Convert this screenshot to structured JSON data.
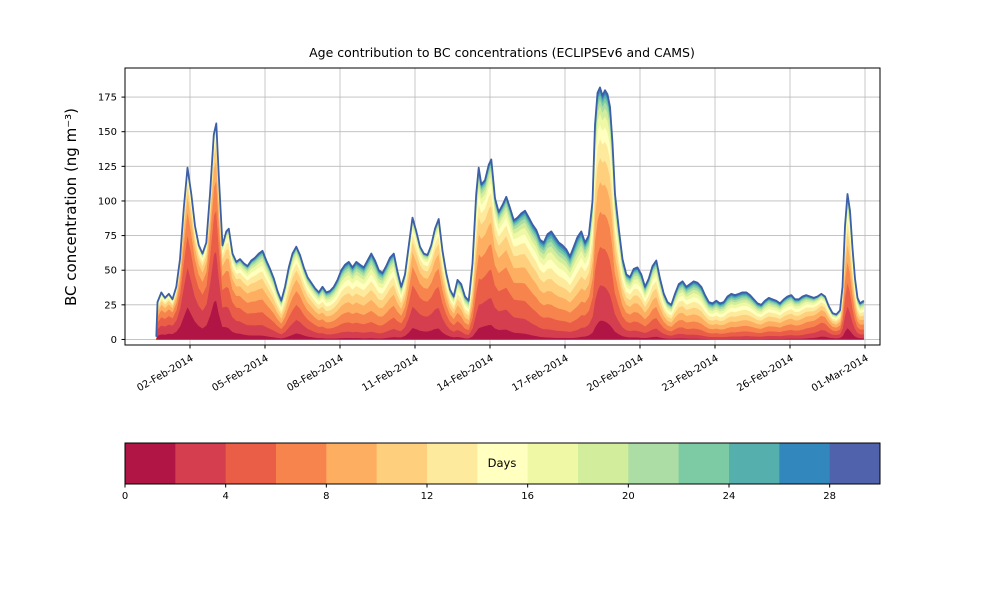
{
  "chart_data": {
    "type": "area",
    "title": "Age contribution to BC concentrations (ECLIPSEv6 and CAMS)",
    "ylabel": "BC concentration (ng m⁻³)",
    "xlabel": "",
    "grid": true,
    "ylim": [
      -4,
      196
    ],
    "yticks": [
      0,
      25,
      50,
      75,
      100,
      125,
      150,
      175
    ],
    "xlim_days": [
      -1.6,
      28.6
    ],
    "x_days_since": "01-Feb-2014",
    "xticks": [
      {
        "value": 1,
        "label": "02-Feb-2014"
      },
      {
        "value": 4,
        "label": "05-Feb-2014"
      },
      {
        "value": 7,
        "label": "08-Feb-2014"
      },
      {
        "value": 10,
        "label": "11-Feb-2014"
      },
      {
        "value": 13,
        "label": "14-Feb-2014"
      },
      {
        "value": 16,
        "label": "17-Feb-2014"
      },
      {
        "value": 19,
        "label": "20-Feb-2014"
      },
      {
        "value": 22,
        "label": "23-Feb-2014"
      },
      {
        "value": 25,
        "label": "26-Feb-2014"
      },
      {
        "value": 28,
        "label": "01-Mar-2014"
      }
    ],
    "stack_by": "age_days",
    "age_bins": {
      "min": 0,
      "max": 30,
      "step": 2
    },
    "envelope_color": "#3c5fa6",
    "colormap": {
      "name": "Spectral",
      "stops": [
        [
          0.0,
          "#9e0142"
        ],
        [
          0.1,
          "#d53e4f"
        ],
        [
          0.2,
          "#f46d43"
        ],
        [
          0.3,
          "#fdae61"
        ],
        [
          0.4,
          "#fee08b"
        ],
        [
          0.5,
          "#ffffbf"
        ],
        [
          0.6,
          "#e6f598"
        ],
        [
          0.7,
          "#abdda4"
        ],
        [
          0.8,
          "#66c2a5"
        ],
        [
          0.9,
          "#3288bd"
        ],
        [
          1.0,
          "#5e4fa2"
        ]
      ]
    },
    "colorbar": {
      "label": "Days",
      "ticks": [
        0,
        4,
        8,
        12,
        16,
        20,
        24,
        28
      ],
      "range": [
        0,
        30
      ]
    },
    "points": [
      [
        -0.35,
        2
      ],
      [
        -0.3,
        27
      ],
      [
        -0.15,
        34
      ],
      [
        0.0,
        30
      ],
      [
        0.15,
        33
      ],
      [
        0.3,
        29
      ],
      [
        0.45,
        38
      ],
      [
        0.6,
        58
      ],
      [
        0.75,
        95
      ],
      [
        0.9,
        124
      ],
      [
        1.05,
        105
      ],
      [
        1.2,
        82
      ],
      [
        1.35,
        68
      ],
      [
        1.5,
        62
      ],
      [
        1.65,
        70
      ],
      [
        1.8,
        105
      ],
      [
        1.95,
        148
      ],
      [
        2.05,
        156
      ],
      [
        2.15,
        118
      ],
      [
        2.3,
        68
      ],
      [
        2.45,
        78
      ],
      [
        2.55,
        80
      ],
      [
        2.7,
        62
      ],
      [
        2.85,
        56
      ],
      [
        3.0,
        58
      ],
      [
        3.15,
        55
      ],
      [
        3.3,
        53
      ],
      [
        3.45,
        57
      ],
      [
        3.6,
        59
      ],
      [
        3.75,
        62
      ],
      [
        3.9,
        64
      ],
      [
        4.05,
        57
      ],
      [
        4.2,
        51
      ],
      [
        4.35,
        44
      ],
      [
        4.5,
        35
      ],
      [
        4.65,
        28
      ],
      [
        4.8,
        38
      ],
      [
        4.95,
        52
      ],
      [
        5.1,
        62
      ],
      [
        5.25,
        67
      ],
      [
        5.4,
        61
      ],
      [
        5.55,
        52
      ],
      [
        5.7,
        45
      ],
      [
        5.85,
        41
      ],
      [
        6.0,
        37
      ],
      [
        6.15,
        34
      ],
      [
        6.3,
        38
      ],
      [
        6.45,
        34
      ],
      [
        6.6,
        35
      ],
      [
        6.75,
        38
      ],
      [
        6.9,
        43
      ],
      [
        7.05,
        50
      ],
      [
        7.2,
        54
      ],
      [
        7.35,
        56
      ],
      [
        7.5,
        52
      ],
      [
        7.65,
        56
      ],
      [
        7.8,
        54
      ],
      [
        7.95,
        52
      ],
      [
        8.1,
        57
      ],
      [
        8.25,
        62
      ],
      [
        8.4,
        57
      ],
      [
        8.55,
        50
      ],
      [
        8.7,
        48
      ],
      [
        8.85,
        53
      ],
      [
        9.0,
        59
      ],
      [
        9.15,
        62
      ],
      [
        9.3,
        49
      ],
      [
        9.45,
        38
      ],
      [
        9.6,
        47
      ],
      [
        9.75,
        68
      ],
      [
        9.9,
        88
      ],
      [
        10.05,
        78
      ],
      [
        10.2,
        67
      ],
      [
        10.35,
        62
      ],
      [
        10.5,
        61
      ],
      [
        10.65,
        68
      ],
      [
        10.8,
        80
      ],
      [
        10.95,
        87
      ],
      [
        11.1,
        64
      ],
      [
        11.25,
        48
      ],
      [
        11.4,
        36
      ],
      [
        11.55,
        31
      ],
      [
        11.7,
        43
      ],
      [
        11.85,
        40
      ],
      [
        12.0,
        31
      ],
      [
        12.15,
        28
      ],
      [
        12.3,
        55
      ],
      [
        12.45,
        105
      ],
      [
        12.55,
        124
      ],
      [
        12.65,
        112
      ],
      [
        12.8,
        115
      ],
      [
        12.95,
        126
      ],
      [
        13.05,
        130
      ],
      [
        13.2,
        102
      ],
      [
        13.35,
        92
      ],
      [
        13.5,
        97
      ],
      [
        13.65,
        103
      ],
      [
        13.8,
        95
      ],
      [
        13.95,
        86
      ],
      [
        14.1,
        88
      ],
      [
        14.25,
        91
      ],
      [
        14.4,
        93
      ],
      [
        14.55,
        88
      ],
      [
        14.7,
        83
      ],
      [
        14.85,
        79
      ],
      [
        15.0,
        72
      ],
      [
        15.15,
        70
      ],
      [
        15.3,
        76
      ],
      [
        15.45,
        78
      ],
      [
        15.6,
        74
      ],
      [
        15.75,
        70
      ],
      [
        15.9,
        68
      ],
      [
        16.05,
        65
      ],
      [
        16.2,
        60
      ],
      [
        16.35,
        67
      ],
      [
        16.5,
        74
      ],
      [
        16.65,
        78
      ],
      [
        16.8,
        70
      ],
      [
        16.95,
        75
      ],
      [
        17.1,
        100
      ],
      [
        17.2,
        155
      ],
      [
        17.3,
        178
      ],
      [
        17.4,
        182
      ],
      [
        17.5,
        176
      ],
      [
        17.6,
        180
      ],
      [
        17.7,
        177
      ],
      [
        17.8,
        168
      ],
      [
        17.9,
        142
      ],
      [
        18.0,
        105
      ],
      [
        18.15,
        80
      ],
      [
        18.3,
        58
      ],
      [
        18.45,
        47
      ],
      [
        18.6,
        45
      ],
      [
        18.75,
        51
      ],
      [
        18.9,
        52
      ],
      [
        19.05,
        47
      ],
      [
        19.2,
        38
      ],
      [
        19.35,
        44
      ],
      [
        19.5,
        53
      ],
      [
        19.65,
        57
      ],
      [
        19.8,
        44
      ],
      [
        19.95,
        33
      ],
      [
        20.1,
        27
      ],
      [
        20.25,
        25
      ],
      [
        20.4,
        33
      ],
      [
        20.55,
        40
      ],
      [
        20.7,
        42
      ],
      [
        20.85,
        38
      ],
      [
        21.0,
        40
      ],
      [
        21.15,
        42
      ],
      [
        21.3,
        41
      ],
      [
        21.45,
        38
      ],
      [
        21.6,
        32
      ],
      [
        21.75,
        27
      ],
      [
        21.9,
        26
      ],
      [
        22.05,
        28
      ],
      [
        22.2,
        26
      ],
      [
        22.35,
        27
      ],
      [
        22.5,
        31
      ],
      [
        22.65,
        33
      ],
      [
        22.8,
        32
      ],
      [
        22.95,
        33
      ],
      [
        23.1,
        34
      ],
      [
        23.25,
        34
      ],
      [
        23.4,
        32
      ],
      [
        23.55,
        29
      ],
      [
        23.7,
        26
      ],
      [
        23.85,
        25
      ],
      [
        24.0,
        28
      ],
      [
        24.15,
        30
      ],
      [
        24.3,
        29
      ],
      [
        24.45,
        28
      ],
      [
        24.6,
        26
      ],
      [
        24.75,
        29
      ],
      [
        24.9,
        31
      ],
      [
        25.05,
        32
      ],
      [
        25.2,
        29
      ],
      [
        25.35,
        29
      ],
      [
        25.5,
        31
      ],
      [
        25.65,
        32
      ],
      [
        25.8,
        31
      ],
      [
        25.95,
        30
      ],
      [
        26.1,
        31
      ],
      [
        26.25,
        33
      ],
      [
        26.4,
        31
      ],
      [
        26.55,
        24
      ],
      [
        26.7,
        19
      ],
      [
        26.85,
        18
      ],
      [
        27.0,
        21
      ],
      [
        27.1,
        38
      ],
      [
        27.2,
        82
      ],
      [
        27.3,
        105
      ],
      [
        27.4,
        93
      ],
      [
        27.5,
        66
      ],
      [
        27.6,
        44
      ],
      [
        27.7,
        30
      ],
      [
        27.8,
        26
      ],
      [
        27.95,
        28
      ]
    ],
    "age_profile_keypoints": [
      [
        -0.4,
        8,
        2.0
      ],
      [
        0.9,
        6,
        1.7
      ],
      [
        1.5,
        7,
        1.9
      ],
      [
        2.0,
        6,
        1.7
      ],
      [
        2.6,
        8,
        2.0
      ],
      [
        3.5,
        10,
        2.2
      ],
      [
        4.7,
        11,
        2.4
      ],
      [
        5.3,
        9,
        2.1
      ],
      [
        6.5,
        12,
        2.5
      ],
      [
        7.5,
        12,
        2.6
      ],
      [
        8.5,
        12.5,
        2.7
      ],
      [
        9.3,
        11,
        2.4
      ],
      [
        9.9,
        8,
        2.0
      ],
      [
        10.9,
        8,
        2.0
      ],
      [
        11.6,
        10,
        2.2
      ],
      [
        12.1,
        12,
        2.4
      ],
      [
        12.7,
        9,
        1.9
      ],
      [
        13.6,
        9.5,
        2.0
      ],
      [
        14.5,
        11,
        2.2
      ],
      [
        15.5,
        13,
        2.6
      ],
      [
        16.5,
        13,
        2.5
      ],
      [
        17.45,
        9.5,
        1.9
      ],
      [
        18.3,
        11,
        2.2
      ],
      [
        19.0,
        12,
        2.4
      ],
      [
        19.6,
        11,
        2.3
      ],
      [
        21.0,
        13,
        2.6
      ],
      [
        22.5,
        14,
        2.8
      ],
      [
        24.0,
        13,
        2.6
      ],
      [
        25.5,
        12,
        2.5
      ],
      [
        26.3,
        9,
        2.1
      ],
      [
        26.9,
        10,
        2.2
      ],
      [
        27.3,
        9,
        2.0
      ],
      [
        28.0,
        12,
        2.3
      ]
    ]
  }
}
